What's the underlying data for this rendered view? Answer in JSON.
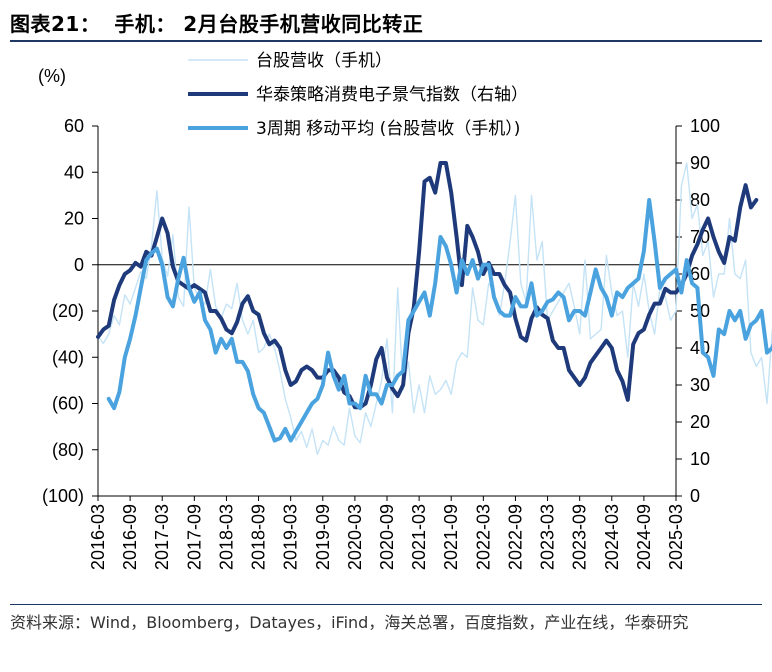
{
  "header": {
    "figure_label": "图表21：",
    "title": "手机：  2月台股手机营收同比转正"
  },
  "source_note": "资料来源：Wind，Bloomberg，Datayes，iFind，海关总署，百度指数，产业在线，华泰研究",
  "chart_data": {
    "type": "line",
    "left_axis_unit": "(%)",
    "x_start": "2016-03",
    "x_end": "2025-03",
    "x_tick_labels": [
      "2016-03",
      "2016-09",
      "2017-03",
      "2017-09",
      "2018-03",
      "2018-09",
      "2019-03",
      "2019-09",
      "2020-03",
      "2020-09",
      "2021-03",
      "2021-09",
      "2022-03",
      "2022-09",
      "2023-03",
      "2023-09",
      "2024-03",
      "2024-09",
      "2025-03"
    ],
    "left_axis": {
      "ylim": [
        -100,
        60
      ],
      "ticks": [
        60,
        40,
        20,
        0,
        -20,
        -40,
        -60,
        -80,
        -100
      ],
      "tick_labels": [
        "60",
        "40",
        "20",
        "0",
        "(20)",
        "(40)",
        "(60)",
        "(80)",
        "(100)"
      ]
    },
    "right_axis": {
      "ylim": [
        0,
        100
      ],
      "ticks": [
        100,
        90,
        80,
        70,
        60,
        50,
        40,
        30,
        20,
        10,
        0
      ],
      "tick_labels": [
        "100",
        "90",
        "80",
        "70",
        "60",
        "50",
        "40",
        "30",
        "20",
        "10",
        "0"
      ]
    },
    "grid": false,
    "legend_position": "top",
    "colors": {
      "monthly": "#c5e3f6",
      "index": "#1f3a7a",
      "ma3": "#4aa3df",
      "zero_line": "#000000"
    },
    "series": [
      {
        "name": "台股营收（手机）",
        "axis": "left",
        "start": "2016-03",
        "values": [
          -31,
          -34,
          -30,
          -22,
          -26,
          -13,
          -17,
          -10,
          -3,
          -6,
          8,
          32,
          3,
          -5,
          13,
          -14,
          -18,
          25,
          -10,
          -15,
          -17,
          -2,
          -18,
          -23,
          -17,
          -19,
          -8,
          -24,
          -30,
          -24,
          -38,
          -36,
          -30,
          -36,
          -46,
          -58,
          -66,
          -76,
          -72,
          -79,
          -71,
          -82,
          -76,
          -78,
          -70,
          -76,
          -78,
          -62,
          -74,
          -77,
          -64,
          -70,
          -60,
          -50,
          -32,
          -64,
          -10,
          -54,
          -42,
          -64,
          -52,
          -64,
          -48,
          -56,
          -54,
          -50,
          -56,
          -42,
          -38,
          -40,
          -10,
          -24,
          -26,
          -8,
          -12,
          -22,
          -8,
          10,
          30,
          -8,
          -16,
          30,
          2,
          10,
          -24,
          -20,
          -16,
          -12,
          -8,
          -18,
          -30,
          2,
          -32,
          -30,
          -28,
          4,
          -12,
          -22,
          -20,
          -40,
          -8,
          -18,
          -4,
          -20,
          -30,
          -10,
          -14,
          -24,
          -20,
          34,
          44,
          20,
          26,
          4,
          10,
          -14,
          -4,
          -4,
          20,
          -4,
          -6,
          2,
          -38,
          -44,
          -40,
          -60,
          -28,
          -48,
          -54,
          -34,
          -18,
          -24,
          -44,
          -54,
          -30,
          -42,
          -34,
          -20,
          0
        ]
      },
      {
        "name": "华泰策略消费电子景气指数（右轴）",
        "axis": "right",
        "start": "2016-03",
        "values": [
          43,
          45,
          46,
          53,
          57,
          60,
          61,
          63,
          62,
          66,
          65,
          70,
          75,
          71,
          62,
          58,
          57,
          56,
          57,
          56,
          55,
          50,
          50,
          48,
          45,
          44,
          47,
          52,
          54,
          50,
          49,
          44,
          41,
          42,
          40,
          34,
          30,
          31,
          34,
          35,
          34,
          32,
          32,
          34,
          34,
          32,
          28,
          27,
          24,
          24,
          25,
          30,
          37,
          40,
          32,
          29,
          27,
          30,
          44,
          51,
          66,
          85,
          86,
          82,
          90,
          90,
          82,
          70,
          57,
          73,
          70,
          66,
          60,
          63,
          60,
          60,
          57,
          55,
          48,
          43,
          42,
          48,
          51,
          49,
          48,
          42,
          40,
          40,
          34,
          32,
          30,
          32,
          36,
          38,
          40,
          42,
          40,
          34,
          31,
          26,
          41,
          44,
          45,
          49,
          52,
          52,
          56,
          55,
          55,
          57,
          60,
          65,
          68,
          72,
          75,
          70,
          66,
          63,
          70,
          69,
          78,
          84,
          78,
          80
        ],
        "y_scale_note": ""
      },
      {
        "name": "3周期 移动平均 (台股营收（手机）)",
        "axis": "left",
        "start": "2016-05",
        "values": [
          -58,
          -62,
          -55,
          -40,
          -32,
          -22,
          -10,
          2,
          5,
          7,
          0,
          -14,
          -18,
          -6,
          3,
          -10,
          -16,
          -12,
          -24,
          -28,
          -38,
          -32,
          -36,
          -32,
          -42,
          -42,
          -46,
          -56,
          -62,
          -64,
          -70,
          -76,
          -75,
          -71,
          -76,
          -72,
          -68,
          -64,
          -60,
          -58,
          -52,
          -38,
          -48,
          -54,
          -48,
          -60,
          -60,
          -62,
          -48,
          -56,
          -56,
          -60,
          -52,
          -52,
          -48,
          -46,
          -24,
          -20,
          -16,
          -12,
          -22,
          -8,
          12,
          8,
          0,
          -12,
          2,
          -4,
          2,
          -6,
          0,
          0,
          -14,
          -20,
          -22,
          -22,
          -14,
          -18,
          -18,
          -8,
          -22,
          -20,
          -16,
          -15,
          -12,
          -14,
          -24,
          -20,
          -20,
          -22,
          -12,
          -2,
          -10,
          -14,
          -22,
          -12,
          -14,
          -10,
          -8,
          -6,
          6,
          28,
          10,
          -10,
          -6,
          -4,
          -2,
          -12,
          2,
          -8,
          -10,
          -38,
          -40,
          -48,
          -28,
          -30,
          -20,
          -24,
          -20,
          -32,
          -26,
          -24,
          -20,
          -38,
          -36,
          -30,
          -20
        ]
      }
    ]
  }
}
